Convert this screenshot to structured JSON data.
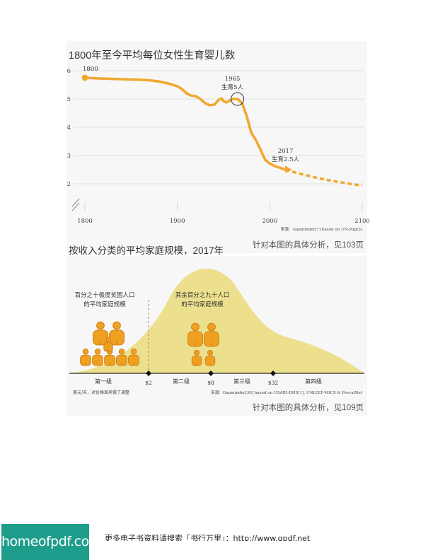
{
  "fertility": {
    "title": "1800年至今平均每位女性生育婴儿数",
    "annotations": {
      "start_year": "1800",
      "mid_year": "1965",
      "mid_label": "生育5人",
      "end_year": "2017",
      "end_label": "生育2.5人"
    },
    "source": "来源：Gapminder[7] based on UN-Pop[3]",
    "page_ref": "针对本图的具体分析，见103页"
  },
  "households": {
    "title": "按收入分类的平均家庭规模，2017年",
    "left_label": [
      "百分之十极度贫困人口",
      "的平均家庭规模"
    ],
    "right_label": [
      "其余百分之九十人口",
      "的平均家庭规模"
    ],
    "levels": [
      "第一级",
      "第二级",
      "第三级",
      "第四级"
    ],
    "markers": [
      "$2",
      "$8",
      "$32"
    ],
    "unit_note": "美元/天，对价格差异做了调整",
    "source": "来源：Gapminder[30] based on USAID-DHS[1], UNICEF-MICS & PovcalNet",
    "page_ref": "针对本图的具体分析，见109页"
  },
  "footer": {
    "banner": "homeofpdf.com",
    "text": "更多电子书资料请搜索「书行万里」：http://www.gpdf.net"
  },
  "colors": {
    "line": "#f0a830",
    "hump": "#ecdf8e",
    "person": "#f0a020",
    "text": "#333333"
  },
  "chart_data": [
    {
      "type": "line",
      "title": "1800年至今平均每位女性生育婴儿数",
      "xlim": [
        1800,
        2100
      ],
      "ylim": [
        1,
        6
      ],
      "xticks": [
        1800,
        1900,
        2000,
        2100
      ],
      "yticks": [
        2,
        3,
        4,
        5,
        6
      ],
      "grid": true,
      "series": [
        {
          "style": "solid",
          "x": [
            1800,
            1820,
            1840,
            1860,
            1870,
            1880,
            1890,
            1900,
            1905,
            1910,
            1915,
            1920,
            1925,
            1930,
            1935,
            1940,
            1945,
            1948,
            1950,
            1953,
            1957,
            1960,
            1965,
            1970,
            1975,
            1980,
            1985,
            1990,
            1995,
            2000,
            2005,
            2010,
            2015,
            2017
          ],
          "y": [
            5.75,
            5.72,
            5.7,
            5.68,
            5.66,
            5.62,
            5.55,
            5.45,
            5.35,
            5.2,
            5.12,
            5.1,
            5.0,
            4.85,
            4.78,
            4.8,
            4.98,
            5.02,
            4.92,
            4.88,
            4.95,
            5.0,
            5.0,
            4.85,
            4.4,
            3.8,
            3.55,
            3.2,
            2.85,
            2.72,
            2.63,
            2.58,
            2.52,
            2.5
          ]
        },
        {
          "style": "dashed",
          "x": [
            2017,
            2030,
            2040,
            2050,
            2060,
            2070,
            2080,
            2090,
            2100
          ],
          "y": [
            2.5,
            2.38,
            2.3,
            2.22,
            2.15,
            2.09,
            2.04,
            1.98,
            1.94
          ]
        }
      ]
    },
    {
      "type": "area",
      "title": "按收入分类的平均家庭规模，2017年",
      "xlabel": "美元/天，对价格差异做了调整",
      "categories": [
        "第一级",
        "第二级",
        "第三级",
        "第四级"
      ],
      "markers": [
        "$2",
        "$8",
        "$32"
      ],
      "groups": [
        {
          "label": "百分之十极度贫困人口的平均家庭规模",
          "people": 9
        },
        {
          "label": "其余百分之九十人口的平均家庭规模",
          "people": 5
        }
      ]
    }
  ]
}
